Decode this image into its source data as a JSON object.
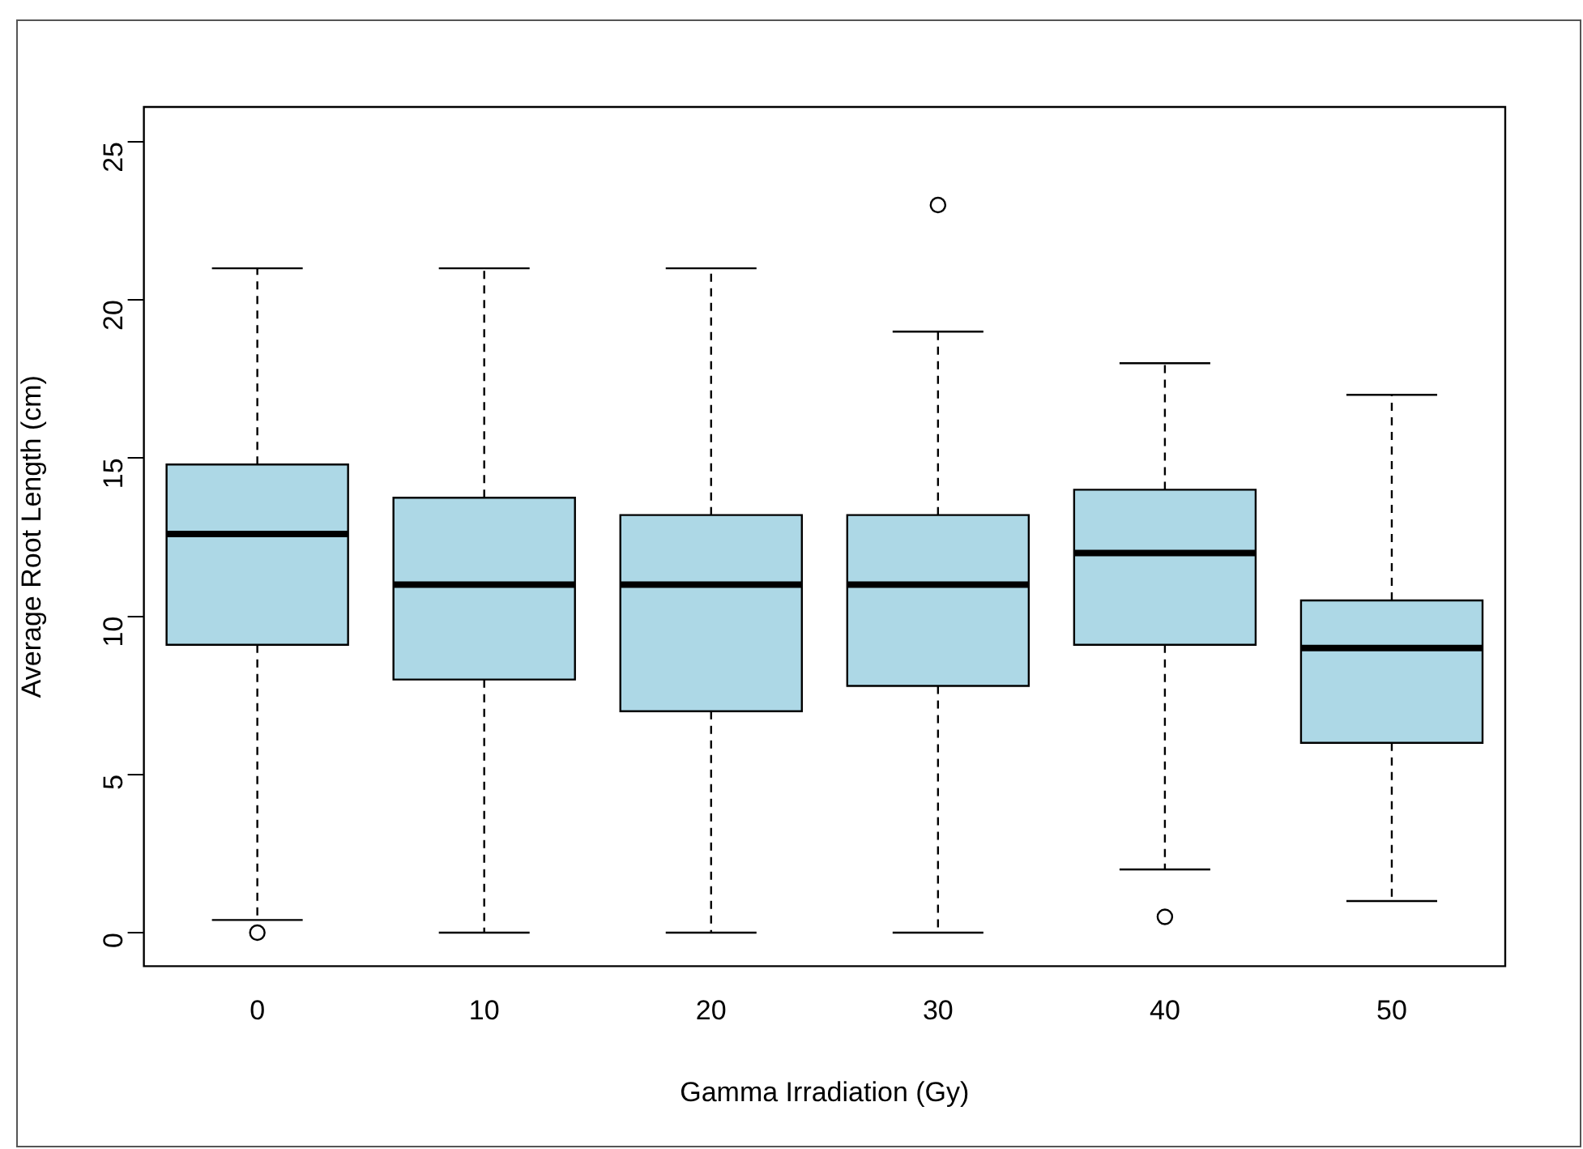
{
  "chart_data": {
    "type": "box",
    "xlabel": "Gamma Irradiation (Gy)",
    "ylabel": "Average Root Length (cm)",
    "categories": [
      "0",
      "10",
      "20",
      "30",
      "40",
      "50"
    ],
    "color": "#add8e6",
    "ylim": [
      -1.06,
      26.1
    ],
    "yticks": [
      0,
      5,
      10,
      15,
      20,
      25
    ],
    "grid": false,
    "legend": false,
    "boxes": [
      {
        "low": 0.4,
        "q1": 9.1,
        "median": 12.6,
        "q3": 14.8,
        "high": 21,
        "outliers": [
          0
        ]
      },
      {
        "low": 0,
        "q1": 8,
        "median": 11,
        "q3": 13.75,
        "high": 21
      },
      {
        "low": 0,
        "q1": 7,
        "median": 11,
        "q3": 13.2,
        "high": 21
      },
      {
        "low": 0,
        "q1": 7.8,
        "median": 11,
        "q3": 13.2,
        "high": 19,
        "outliers": [
          23
        ]
      },
      {
        "low": 2,
        "q1": 9.1,
        "median": 12,
        "q3": 14,
        "high": 18,
        "outliers": [
          0.5
        ]
      },
      {
        "low": 1,
        "q1": 6,
        "median": 9,
        "q3": 10.5,
        "high": 17
      }
    ]
  }
}
